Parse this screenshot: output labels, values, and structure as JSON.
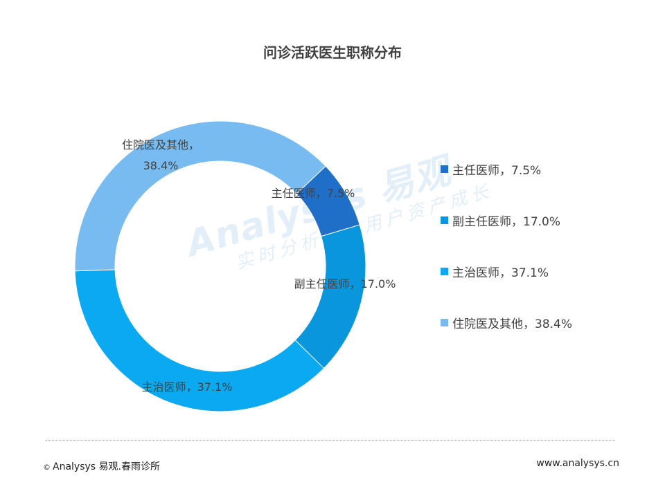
{
  "footer": {
    "copyright_symbol": "©",
    "left_text": "Analysys 易观.春雨诊所",
    "right_text": "www.analysys.cn"
  },
  "watermark": {
    "brand": "Analysys 易观",
    "tagline": "实时分析驱动用户资产成长"
  },
  "chart_data": {
    "type": "pie",
    "donut": true,
    "title": "问诊活跃医生职称分布",
    "slices": [
      {
        "name": "主任医师",
        "value": 7.5,
        "label": "主任医师，7.5%",
        "color": "#1f6fc8"
      },
      {
        "name": "副主任医师",
        "value": 17.0,
        "label": "副主任医师，17.0%",
        "color": "#0a96dc"
      },
      {
        "name": "主治医师",
        "value": 37.1,
        "label": "主治医师，37.1%",
        "color": "#0aa9f2"
      },
      {
        "name": "住院医及其他",
        "value": 38.4,
        "label": "住院医及其他，38.4%",
        "label_lines": [
          "住院医及其他，",
          "38.4%"
        ],
        "color": "#78bbf0"
      }
    ],
    "legend": {
      "position": "right",
      "items": [
        "主任医师，7.5%",
        "副主任医师，17.0%",
        "主治医师，37.1%",
        "住院医及其他，38.4%"
      ]
    }
  }
}
